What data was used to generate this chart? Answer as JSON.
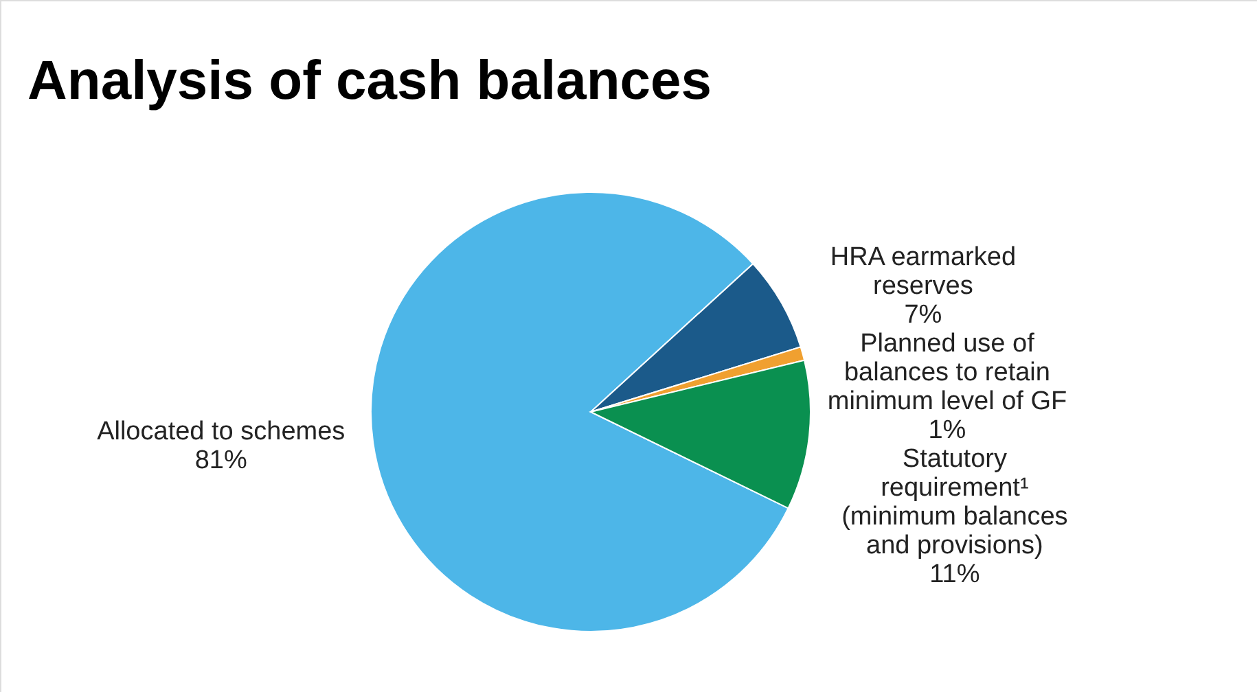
{
  "chart_data": {
    "type": "pie",
    "title": "Analysis of cash balances",
    "categories": [
      "Allocated to schemes",
      "HRA earmarked reserves",
      "Planned use of balances to retain minimum level of GF",
      "Statutory requirement¹ (minimum balances and provisions)"
    ],
    "values": [
      81,
      7,
      1,
      11
    ],
    "value_labels": [
      "81%",
      "7%",
      "1%",
      "11%"
    ],
    "colors": [
      "#4db6e8",
      "#1b5a8a",
      "#f0a030",
      "#0a9050"
    ],
    "legend": false
  }
}
